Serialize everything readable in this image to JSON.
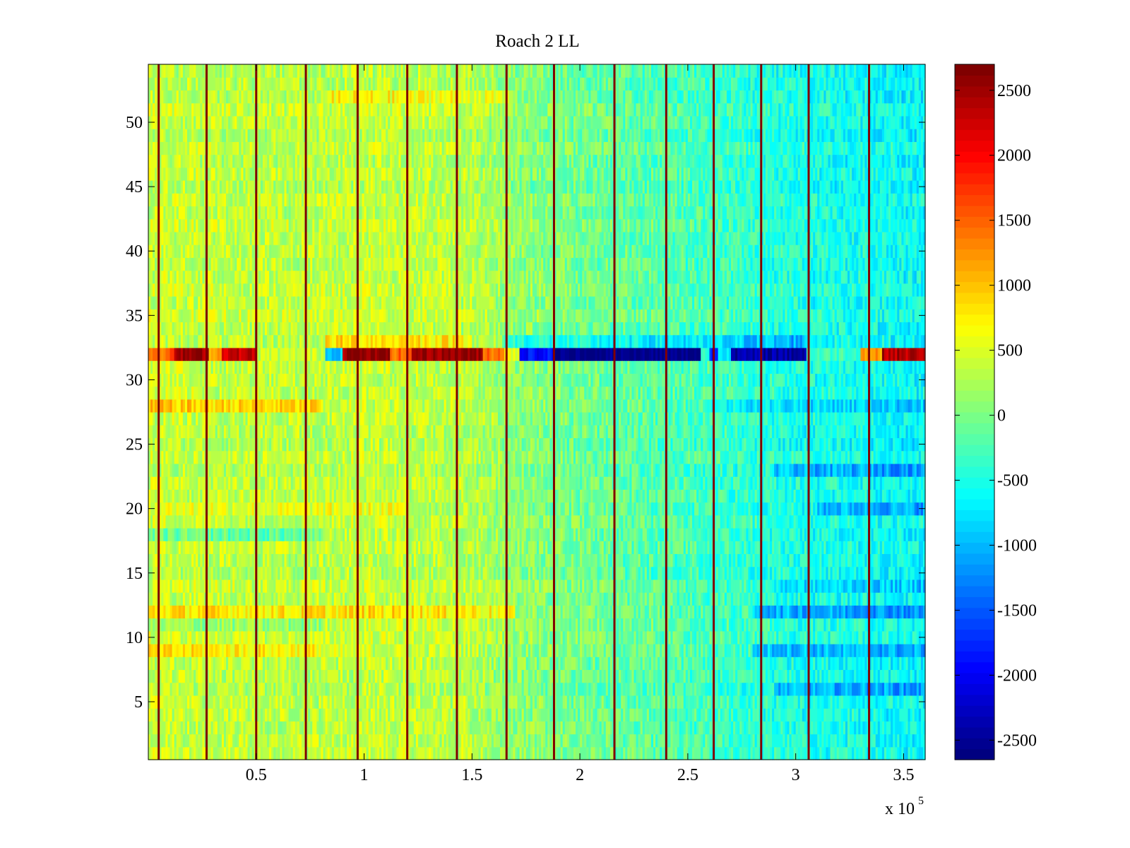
{
  "chart_data": {
    "type": "heatmap",
    "title": "Roach 2 LL",
    "xlabel": "",
    "ylabel": "",
    "x_multiplier_label": "x 10",
    "x_multiplier_exponent": "5",
    "xlim": [
      0,
      3.6
    ],
    "ylim": [
      0.5,
      54.5
    ],
    "x_ticks": [
      0.5,
      1,
      1.5,
      2,
      2.5,
      3,
      3.5
    ],
    "x_tick_labels": [
      "0.5",
      "1",
      "1.5",
      "2",
      "2.5",
      "3",
      "3.5"
    ],
    "y_ticks": [
      5,
      10,
      15,
      20,
      25,
      30,
      35,
      40,
      45,
      50
    ],
    "y_tick_labels": [
      "5",
      "10",
      "15",
      "20",
      "25",
      "30",
      "35",
      "40",
      "45",
      "50"
    ],
    "rows": 54,
    "colormap": "jet",
    "clim": [
      -2650,
      2700
    ],
    "colorbar_ticks": [
      2500,
      2000,
      1500,
      1000,
      500,
      0,
      -500,
      -1000,
      -1500,
      -2000,
      -2500
    ],
    "colorbar_tick_labels": [
      "2500",
      "2000",
      "1500",
      "1000",
      "500",
      "0",
      "-500",
      "-1000",
      "-1500",
      "-2000",
      "-2500"
    ],
    "column_profile": {
      "x": [
        0.0,
        0.5,
        0.8,
        1.0,
        1.5,
        1.7,
        2.0,
        2.5,
        3.0,
        3.3,
        3.6
      ],
      "mean": [
        400,
        330,
        330,
        380,
        310,
        100,
        -50,
        -250,
        -500,
        -550,
        -650
      ]
    },
    "row_offsets": [
      {
        "row": 52,
        "value": 350,
        "x_range": [
          0.82,
          1.7
        ]
      },
      {
        "row": 33,
        "value": 500,
        "x_range": [
          0.82,
          1.5
        ]
      },
      {
        "row": 33,
        "value": -500,
        "x_range": [
          1.65,
          3.05
        ]
      },
      {
        "row": 28,
        "value": 500,
        "x_range": [
          0.0,
          0.8
        ]
      },
      {
        "row": 28,
        "value": -300,
        "x_range": [
          2.6,
          3.6
        ]
      },
      {
        "row": 18,
        "value": -450,
        "x_range": [
          0.0,
          0.8
        ]
      },
      {
        "row": 12,
        "value": 400,
        "x_range": [
          0.0,
          1.7
        ]
      },
      {
        "row": 12,
        "value": -600,
        "x_range": [
          2.8,
          3.6
        ]
      },
      {
        "row": 11,
        "value": -300,
        "x_range": [
          0.0,
          0.8
        ]
      },
      {
        "row": 9,
        "value": 350,
        "x_range": [
          0.0,
          0.8
        ]
      },
      {
        "row": 9,
        "value": -500,
        "x_range": [
          2.8,
          3.6
        ]
      },
      {
        "row": 20,
        "value": 250,
        "x_range": [
          0.0,
          1.2
        ]
      },
      {
        "row": 20,
        "value": -400,
        "x_range": [
          3.1,
          3.6
        ]
      },
      {
        "row": 23,
        "value": -450,
        "x_range": [
          2.9,
          3.6
        ]
      },
      {
        "row": 14,
        "value": -350,
        "x_range": [
          2.9,
          3.6
        ]
      },
      {
        "row": 6,
        "value": -450,
        "x_range": [
          2.9,
          3.6
        ]
      }
    ],
    "feature_row": {
      "row": 32,
      "segments": [
        {
          "x_range": [
            0.0,
            0.12
          ],
          "value": 1500
        },
        {
          "x_range": [
            0.12,
            0.28
          ],
          "value": 2500
        },
        {
          "x_range": [
            0.28,
            0.34
          ],
          "value": 1200
        },
        {
          "x_range": [
            0.34,
            0.5
          ],
          "value": 2300
        },
        {
          "x_range": [
            0.5,
            0.82
          ],
          "value": 400
        },
        {
          "x_range": [
            0.82,
            0.9
          ],
          "value": -900
        },
        {
          "x_range": [
            0.9,
            1.12
          ],
          "value": 2600
        },
        {
          "x_range": [
            1.12,
            1.22
          ],
          "value": 1500
        },
        {
          "x_range": [
            1.22,
            1.55
          ],
          "value": 2550
        },
        {
          "x_range": [
            1.55,
            1.65
          ],
          "value": 1500
        },
        {
          "x_range": [
            1.65,
            1.72
          ],
          "value": 600
        },
        {
          "x_range": [
            1.72,
            1.88
          ],
          "value": -1900
        },
        {
          "x_range": [
            1.88,
            2.56
          ],
          "value": -2600
        },
        {
          "x_range": [
            2.56,
            2.6
          ],
          "value": -400
        },
        {
          "x_range": [
            2.6,
            2.64
          ],
          "value": -1800
        },
        {
          "x_range": [
            2.64,
            2.7
          ],
          "value": -600
        },
        {
          "x_range": [
            2.7,
            3.05
          ],
          "value": -2400
        },
        {
          "x_range": [
            3.05,
            3.3
          ],
          "value": -300
        },
        {
          "x_range": [
            3.3,
            3.4
          ],
          "value": 1200
        },
        {
          "x_range": [
            3.4,
            3.6
          ],
          "value": 2400
        }
      ]
    },
    "spike_columns": {
      "x": [
        0.048,
        0.27,
        0.5,
        0.73,
        0.97,
        1.2,
        1.43,
        1.66,
        1.88,
        2.16,
        2.4,
        2.62,
        2.84,
        3.06,
        3.34
      ],
      "value": 2700
    }
  }
}
